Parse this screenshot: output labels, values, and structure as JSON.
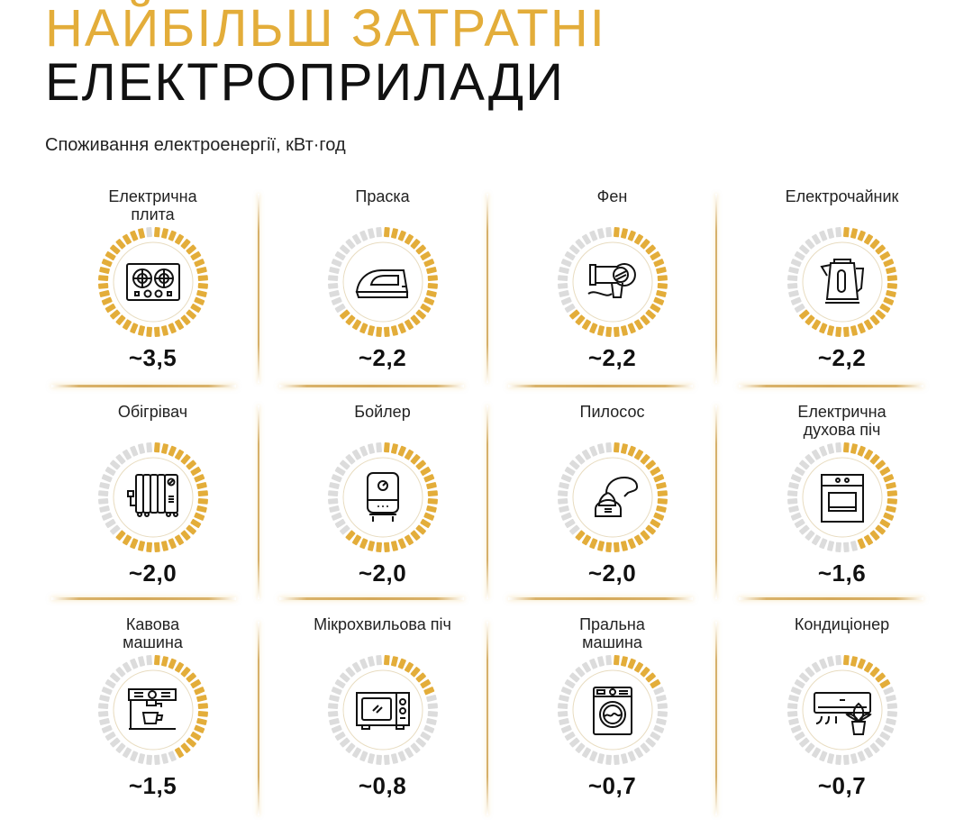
{
  "header": {
    "title_line1": "НАЙБІЛЬШ ЗАТРАТНІ",
    "title_line2": "ЕЛЕКТРОПРИЛАДИ",
    "subtitle": "Споживання електроенергії, кВт·год"
  },
  "colors": {
    "accent": "#e3ad3a",
    "tick_inactive": "#dcdcdc",
    "text": "#111111",
    "separator": "#d6b06a"
  },
  "items": [
    {
      "label": "Електрична плита",
      "value": "~3,5",
      "icon": "stove-icon",
      "active_ticks": 39
    },
    {
      "label": "Праска",
      "value": "~2,2",
      "icon": "iron-icon",
      "active_ticks": 26
    },
    {
      "label": "Фен",
      "value": "~2,2",
      "icon": "hair-dryer-icon",
      "active_ticks": 26
    },
    {
      "label": "Електрочайник",
      "value": "~2,2",
      "icon": "kettle-icon",
      "active_ticks": 26
    },
    {
      "label": "Обігрівач",
      "value": "~2,0",
      "icon": "heater-icon",
      "active_ticks": 25
    },
    {
      "label": "Бойлер",
      "value": "~2,0",
      "icon": "boiler-icon",
      "active_ticks": 25
    },
    {
      "label": "Пилосос",
      "value": "~2,0",
      "icon": "vacuum-cleaner-icon",
      "active_ticks": 25
    },
    {
      "label": "Електрична духова піч",
      "value": "~1,6",
      "icon": "oven-icon",
      "active_ticks": 18
    },
    {
      "label": "Кавова машина",
      "value": "~1,5",
      "icon": "coffee-machine-icon",
      "active_ticks": 17
    },
    {
      "label": "Мікрохвильова піч",
      "value": "~0,8",
      "icon": "microwave-icon",
      "active_ticks": 8
    },
    {
      "label": "Пральна машина",
      "value": "~0,7",
      "icon": "washing-machine-icon",
      "active_ticks": 7
    },
    {
      "label": "Кондиціонер",
      "value": "~0,7",
      "icon": "air-conditioner-icon",
      "active_ticks": 7
    }
  ],
  "chart_data": {
    "type": "bar",
    "title": "НАЙБІЛЬШ ЗАТРАТНІ ЕЛЕКТРОПРИЛАДИ",
    "subtitle": "Споживання електроенергії, кВт·год",
    "categories": [
      "Електрична плита",
      "Праска",
      "Фен",
      "Електрочайник",
      "Обігрівач",
      "Бойлер",
      "Пилосос",
      "Електрична духова піч",
      "Кавова машина",
      "Мікрохвильова піч",
      "Пральна машина",
      "Кондиціонер"
    ],
    "values": [
      3.5,
      2.2,
      2.2,
      2.2,
      2.0,
      2.0,
      2.0,
      1.6,
      1.5,
      0.8,
      0.7,
      0.7
    ],
    "value_labels": [
      "~3,5",
      "~2,2",
      "~2,2",
      "~2,2",
      "~2,0",
      "~2,0",
      "~2,0",
      "~1,6",
      "~1,5",
      "~0,8",
      "~0,7",
      "~0,7"
    ],
    "ylabel": "кВт·год",
    "xlabel": "",
    "layout": "4x3 grid of radial gauges",
    "grid": false,
    "legend": "none"
  }
}
